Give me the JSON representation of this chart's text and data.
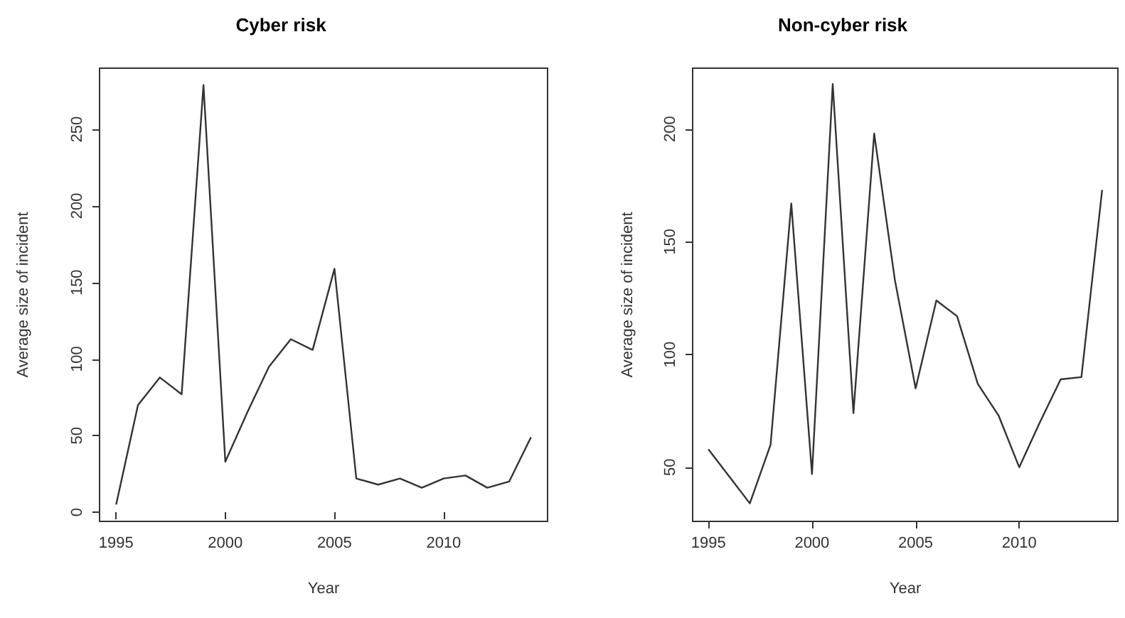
{
  "chart_data": [
    {
      "type": "line",
      "title": "Cyber risk",
      "xlabel": "Year",
      "ylabel": "Average size of incident",
      "x": [
        1995,
        1996,
        1997,
        1998,
        1999,
        2000,
        2001,
        2002,
        2003,
        2004,
        2005,
        2006,
        2007,
        2008,
        2009,
        2010,
        2011,
        2012,
        2013,
        2014
      ],
      "series": [
        {
          "color": "#333333",
          "values": [
            5,
            70,
            88,
            77,
            279,
            33,
            65,
            95,
            113,
            106,
            159,
            22,
            18,
            22,
            16,
            22,
            24,
            16,
            20,
            49
          ]
        }
      ],
      "xlim": [
        1994.24,
        2014.76
      ],
      "xticks": [
        1995,
        2000,
        2005,
        2010
      ],
      "ylim": [
        -6,
        290
      ],
      "yticks": [
        0,
        50,
        100,
        150,
        200,
        250
      ],
      "grid": false,
      "marker": "none",
      "line_style": "solid"
    },
    {
      "type": "line",
      "title": "Non-cyber risk",
      "xlabel": "Year",
      "ylabel": "Average size of incident",
      "x": [
        1995,
        1996,
        1997,
        1998,
        1999,
        2000,
        2001,
        2002,
        2003,
        2004,
        2005,
        2006,
        2007,
        2008,
        2009,
        2010,
        2011,
        2012,
        2013,
        2014
      ],
      "series": [
        {
          "color": "#333333",
          "values": [
            58,
            46,
            34,
            60,
            167,
            47,
            220,
            74,
            198,
            133,
            85,
            124,
            117,
            87,
            73,
            50,
            70,
            89,
            90,
            173
          ]
        }
      ],
      "xlim": [
        1994.24,
        2014.76
      ],
      "xticks": [
        1995,
        2000,
        2005,
        2010
      ],
      "ylim": [
        26,
        227
      ],
      "yticks": [
        50,
        100,
        150,
        200
      ],
      "grid": false,
      "marker": "none",
      "line_style": "solid"
    }
  ]
}
